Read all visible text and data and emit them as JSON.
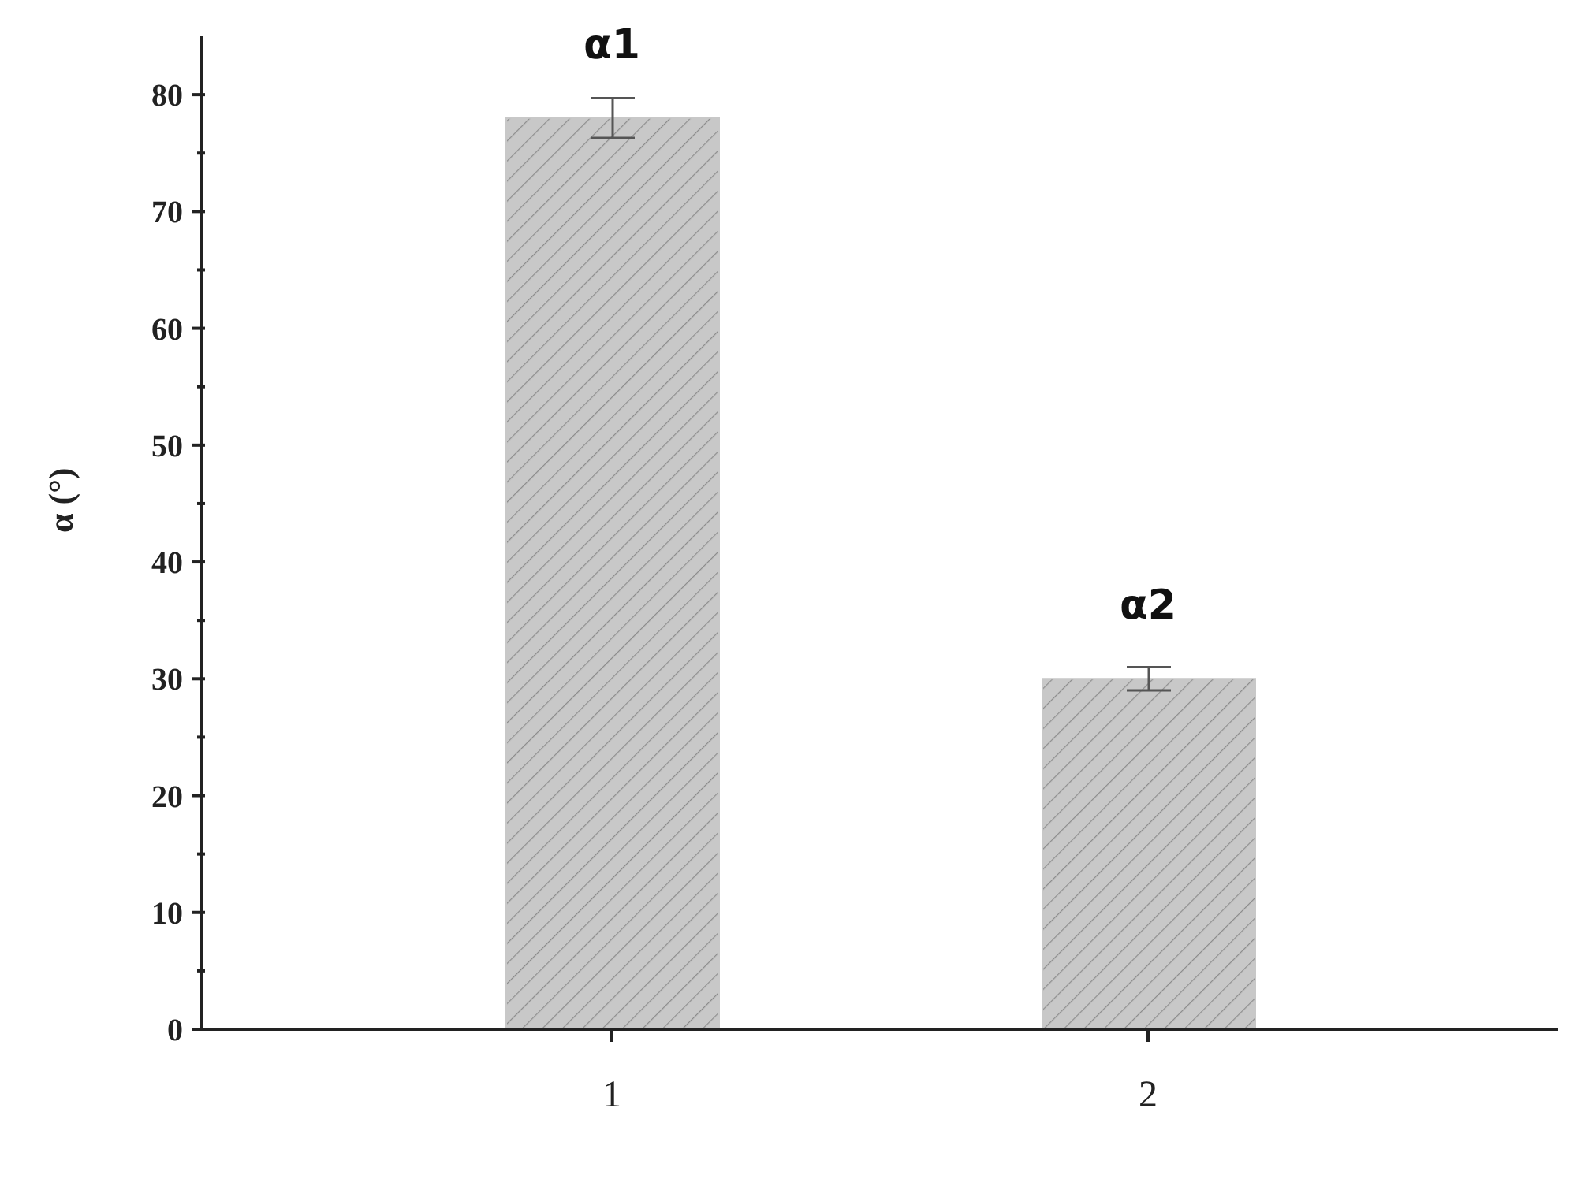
{
  "chart_data": {
    "type": "bar",
    "ylabel": "α (°)",
    "categories": [
      "1",
      "2"
    ],
    "values": [
      78.0,
      30.0
    ],
    "errors": [
      1.7,
      1.0
    ],
    "color": "#c8c8c8",
    "ylim": [
      0,
      85
    ],
    "yticks": [
      0,
      {
        "value": 5,
        "label": null
      },
      10,
      {
        "value": 15,
        "label": null
      },
      20,
      {
        "value": 25,
        "label": null
      },
      30,
      {
        "value": 35,
        "label": null
      },
      40,
      {
        "value": 45,
        "label": null
      },
      50,
      {
        "value": 55,
        "label": null
      },
      60,
      {
        "value": 65,
        "label": null
      },
      70,
      {
        "value": 75,
        "label": null
      },
      80
    ],
    "annotations": [
      {
        "text": "α1",
        "x": "1",
        "y": 78.0
      },
      {
        "text": "α2",
        "x": "2",
        "y": 30.0
      }
    ],
    "grid": false,
    "legend": false
  }
}
